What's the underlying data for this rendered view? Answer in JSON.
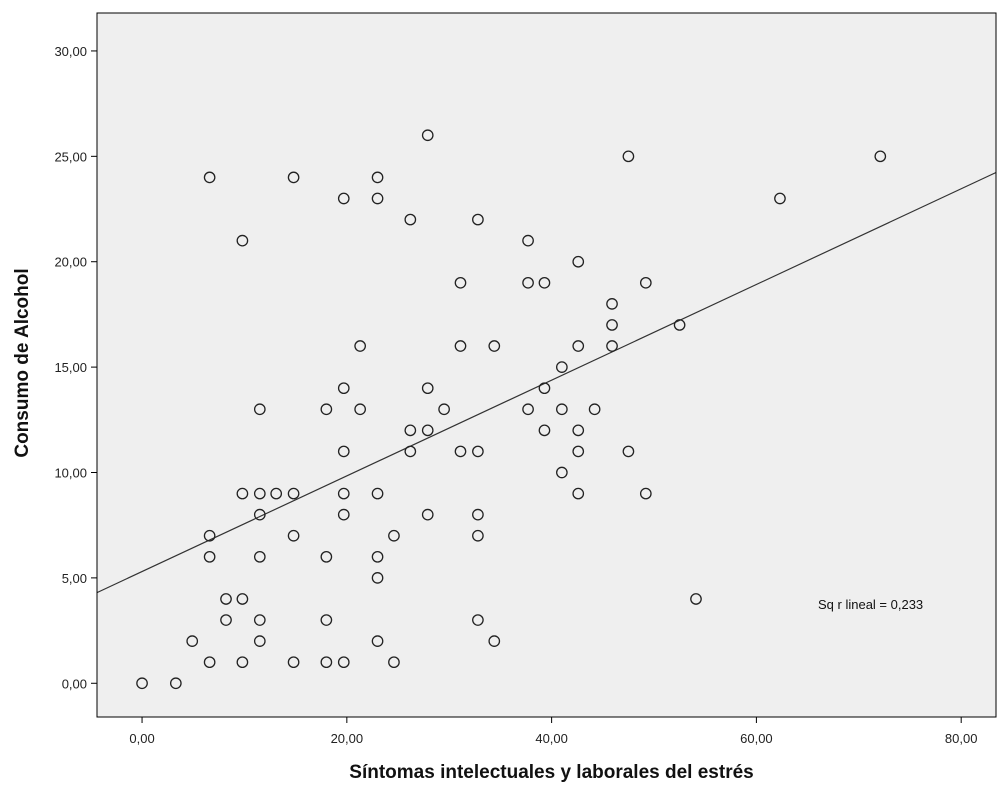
{
  "chart_data": {
    "type": "scatter",
    "xlabel": "Síntomas intelectuales y laborales del estrés",
    "ylabel": "Consumo de Alcohol",
    "xlim": [
      -4.4,
      83.4
    ],
    "ylim": [
      -1.6,
      31.8
    ],
    "x_ticks": [
      0,
      20,
      40,
      60,
      80
    ],
    "x_tick_labels": [
      "0,00",
      "20,00",
      "40,00",
      "60,00",
      "80,00"
    ],
    "y_ticks": [
      0,
      5,
      10,
      15,
      20,
      25,
      30
    ],
    "y_tick_labels": [
      "0,00",
      "5,00",
      "10,00",
      "15,00",
      "20,00",
      "25,00",
      "30,00"
    ],
    "grid": false,
    "background_color": "#efefef",
    "annotation": "Sq r lineal = 0,233",
    "fit_line": {
      "intercept": 5.3,
      "slope": 0.227
    },
    "points": [
      [
        0,
        0
      ],
      [
        3.3,
        0
      ],
      [
        4.9,
        2
      ],
      [
        6.6,
        1
      ],
      [
        6.6,
        6
      ],
      [
        6.6,
        7
      ],
      [
        6.6,
        24
      ],
      [
        8.2,
        3
      ],
      [
        8.2,
        4
      ],
      [
        9.8,
        1
      ],
      [
        9.8,
        4
      ],
      [
        9.8,
        9
      ],
      [
        9.8,
        21
      ],
      [
        11.5,
        2
      ],
      [
        11.5,
        3
      ],
      [
        11.5,
        6
      ],
      [
        11.5,
        8
      ],
      [
        11.5,
        9
      ],
      [
        11.5,
        13
      ],
      [
        13.1,
        9
      ],
      [
        14.8,
        1
      ],
      [
        14.8,
        7
      ],
      [
        14.8,
        9
      ],
      [
        14.8,
        24
      ],
      [
        18.0,
        1
      ],
      [
        18.0,
        3
      ],
      [
        18.0,
        6
      ],
      [
        18.0,
        13
      ],
      [
        19.7,
        1
      ],
      [
        19.7,
        8
      ],
      [
        19.7,
        9
      ],
      [
        19.7,
        11
      ],
      [
        19.7,
        14
      ],
      [
        19.7,
        23
      ],
      [
        21.3,
        13
      ],
      [
        21.3,
        16
      ],
      [
        23.0,
        2
      ],
      [
        23.0,
        5
      ],
      [
        23.0,
        6
      ],
      [
        23.0,
        9
      ],
      [
        23.0,
        23
      ],
      [
        23.0,
        24
      ],
      [
        24.6,
        1
      ],
      [
        24.6,
        7
      ],
      [
        26.2,
        11
      ],
      [
        26.2,
        12
      ],
      [
        26.2,
        22
      ],
      [
        27.9,
        8
      ],
      [
        27.9,
        12
      ],
      [
        27.9,
        14
      ],
      [
        27.9,
        26
      ],
      [
        29.5,
        13
      ],
      [
        31.1,
        11
      ],
      [
        31.1,
        16
      ],
      [
        31.1,
        19
      ],
      [
        32.8,
        3
      ],
      [
        32.8,
        7
      ],
      [
        32.8,
        8
      ],
      [
        32.8,
        11
      ],
      [
        32.8,
        22
      ],
      [
        34.4,
        2
      ],
      [
        34.4,
        16
      ],
      [
        37.7,
        13
      ],
      [
        37.7,
        19
      ],
      [
        37.7,
        21
      ],
      [
        39.3,
        12
      ],
      [
        39.3,
        14
      ],
      [
        39.3,
        19
      ],
      [
        41.0,
        10
      ],
      [
        41.0,
        13
      ],
      [
        41.0,
        15
      ],
      [
        42.6,
        9
      ],
      [
        42.6,
        11
      ],
      [
        42.6,
        12
      ],
      [
        42.6,
        16
      ],
      [
        42.6,
        20
      ],
      [
        44.2,
        13
      ],
      [
        45.9,
        16
      ],
      [
        45.9,
        17
      ],
      [
        45.9,
        18
      ],
      [
        47.5,
        11
      ],
      [
        47.5,
        25
      ],
      [
        49.2,
        9
      ],
      [
        49.2,
        19
      ],
      [
        52.5,
        17
      ],
      [
        54.1,
        4
      ],
      [
        62.3,
        23
      ],
      [
        72.1,
        25
      ]
    ]
  }
}
